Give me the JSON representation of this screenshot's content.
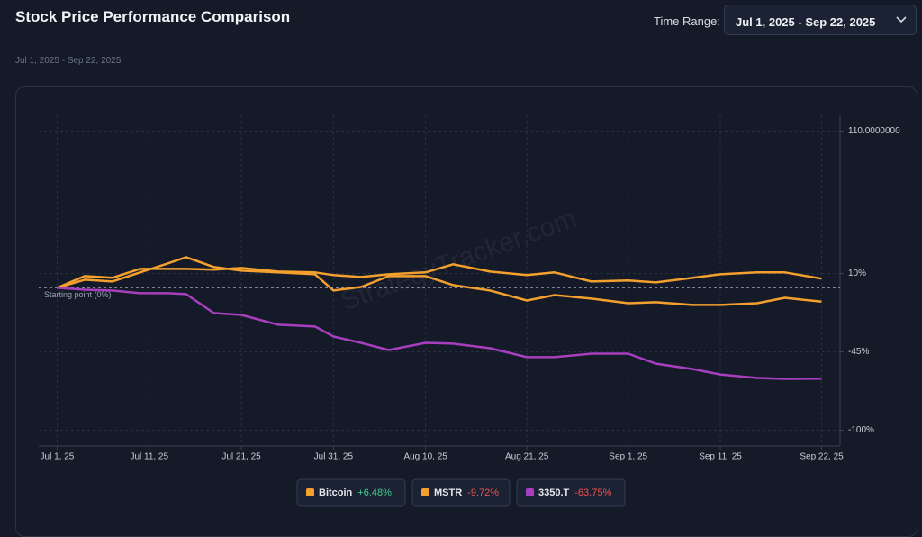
{
  "header": {
    "title": "Stock Price Performance Comparison",
    "subtitle": "Jul 1, 2025 - Sep 22, 2025",
    "range_label": "Time Range:",
    "range_value": "Jul 1, 2025 - Sep 22, 2025"
  },
  "chart_data": {
    "type": "line",
    "watermark": "StrategyTracker.com",
    "annotation": {
      "text": "Starting point (0%)",
      "value": 0
    },
    "x": [
      "2025-07-01",
      "2025-07-04",
      "2025-07-07",
      "2025-07-10",
      "2025-07-13",
      "2025-07-15",
      "2025-07-18",
      "2025-07-21",
      "2025-07-25",
      "2025-07-29",
      "2025-07-31",
      "2025-08-03",
      "2025-08-06",
      "2025-08-10",
      "2025-08-13",
      "2025-08-17",
      "2025-08-21",
      "2025-08-24",
      "2025-08-28",
      "2025-09-01",
      "2025-09-04",
      "2025-09-08",
      "2025-09-11",
      "2025-09-15",
      "2025-09-18",
      "2025-09-22"
    ],
    "xlim": [
      "2025-06-29",
      "2025-09-24"
    ],
    "xticks": [
      {
        "value": "2025-07-01",
        "label": "Jul 1, 25"
      },
      {
        "value": "2025-07-11",
        "label": "Jul 11, 25"
      },
      {
        "value": "2025-07-21",
        "label": "Jul 21, 25"
      },
      {
        "value": "2025-07-31",
        "label": "Jul 31, 25"
      },
      {
        "value": "2025-08-10",
        "label": "Aug 10, 25"
      },
      {
        "value": "2025-08-21",
        "label": "Aug 21, 25"
      },
      {
        "value": "2025-09-01",
        "label": "Sep 1, 25"
      },
      {
        "value": "2025-09-11",
        "label": "Sep 11, 25"
      },
      {
        "value": "2025-09-22",
        "label": "Sep 22, 25"
      }
    ],
    "ylim": [
      -111,
      121
    ],
    "yticks": [
      {
        "value": 110,
        "label": "110.0000000"
      },
      {
        "value": 10,
        "label": "10%"
      },
      {
        "value": -45,
        "label": "-45%"
      },
      {
        "value": -100,
        "label": "-100%"
      }
    ],
    "grid": true,
    "series": [
      {
        "name": "Bitcoin",
        "color": "#f3a02e",
        "change": {
          "value": 6.48,
          "label": "+6.48%"
        },
        "values": [
          0,
          8.2,
          7.0,
          13.3,
          13.3,
          13.3,
          12.7,
          13.9,
          11.4,
          10.8,
          8.9,
          7.6,
          9.5,
          10.8,
          16.5,
          11.4,
          8.9,
          10.8,
          4.4,
          5.1,
          3.8,
          7.0,
          9.5,
          10.8,
          10.8,
          6.48
        ]
      },
      {
        "name": "MSTR",
        "color": "#f3a02e",
        "change": {
          "value": -9.72,
          "label": "-9.72%"
        },
        "values": [
          0,
          5.7,
          4.4,
          10.8,
          17.1,
          21.5,
          14.6,
          12.0,
          10.8,
          9.5,
          -1.9,
          0.6,
          8.2,
          8.2,
          1.9,
          -1.9,
          -8.9,
          -5.1,
          -7.6,
          -10.8,
          -10.1,
          -12.0,
          -12.0,
          -10.8,
          -7.0,
          -9.72
        ]
      },
      {
        "name": "3350.T",
        "color": "#a83fbf",
        "change": {
          "value": -63.75,
          "label": "-63.75%"
        },
        "values": [
          0,
          -1.3,
          -1.9,
          -3.8,
          -3.8,
          -4.4,
          -17.7,
          -19.0,
          -25.9,
          -27.2,
          -34.2,
          -38.6,
          -43.7,
          -38.6,
          -39.2,
          -42.4,
          -48.7,
          -48.7,
          -46.2,
          -46.2,
          -53.2,
          -57.0,
          -60.8,
          -63.3,
          -63.9,
          -63.75
        ]
      }
    ]
  }
}
